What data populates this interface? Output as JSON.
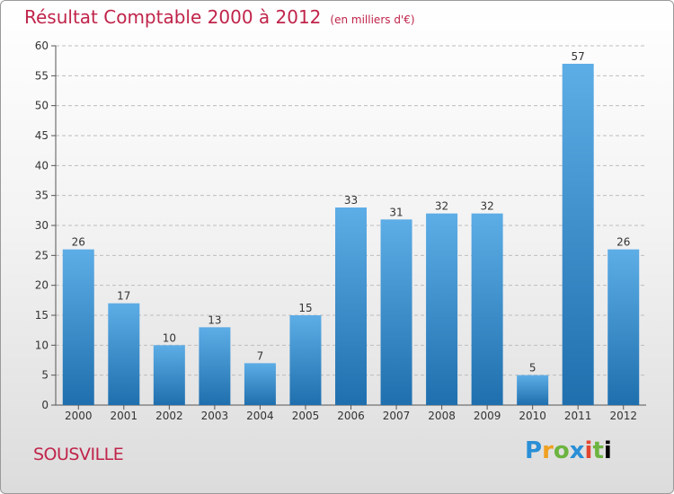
{
  "header": {
    "title": "Résultat Comptable 2000 à 2012",
    "subtitle": "(en milliers d'€)"
  },
  "footer": {
    "commune": "SOUSVILLE",
    "logo_letters": [
      "P",
      "r",
      "o",
      "x",
      "i",
      "t",
      "i"
    ]
  },
  "colors": {
    "bar_top": "#5dade6",
    "bar_bottom": "#1f6fae",
    "title": "#c0244a"
  },
  "chart_data": {
    "type": "bar",
    "title": "Résultat Comptable 2000 à 2012",
    "subtitle": "(en milliers d'€)",
    "categories": [
      "2000",
      "2001",
      "2002",
      "2003",
      "2004",
      "2005",
      "2006",
      "2007",
      "2008",
      "2009",
      "2010",
      "2011",
      "2012"
    ],
    "values": [
      26,
      17,
      10,
      13,
      7,
      15,
      33,
      31,
      32,
      32,
      5,
      57,
      26
    ],
    "ylim": [
      0,
      60
    ],
    "yticks": [
      0,
      5,
      10,
      15,
      20,
      25,
      30,
      35,
      40,
      45,
      50,
      55,
      60
    ],
    "grid": true,
    "legend": "none"
  }
}
